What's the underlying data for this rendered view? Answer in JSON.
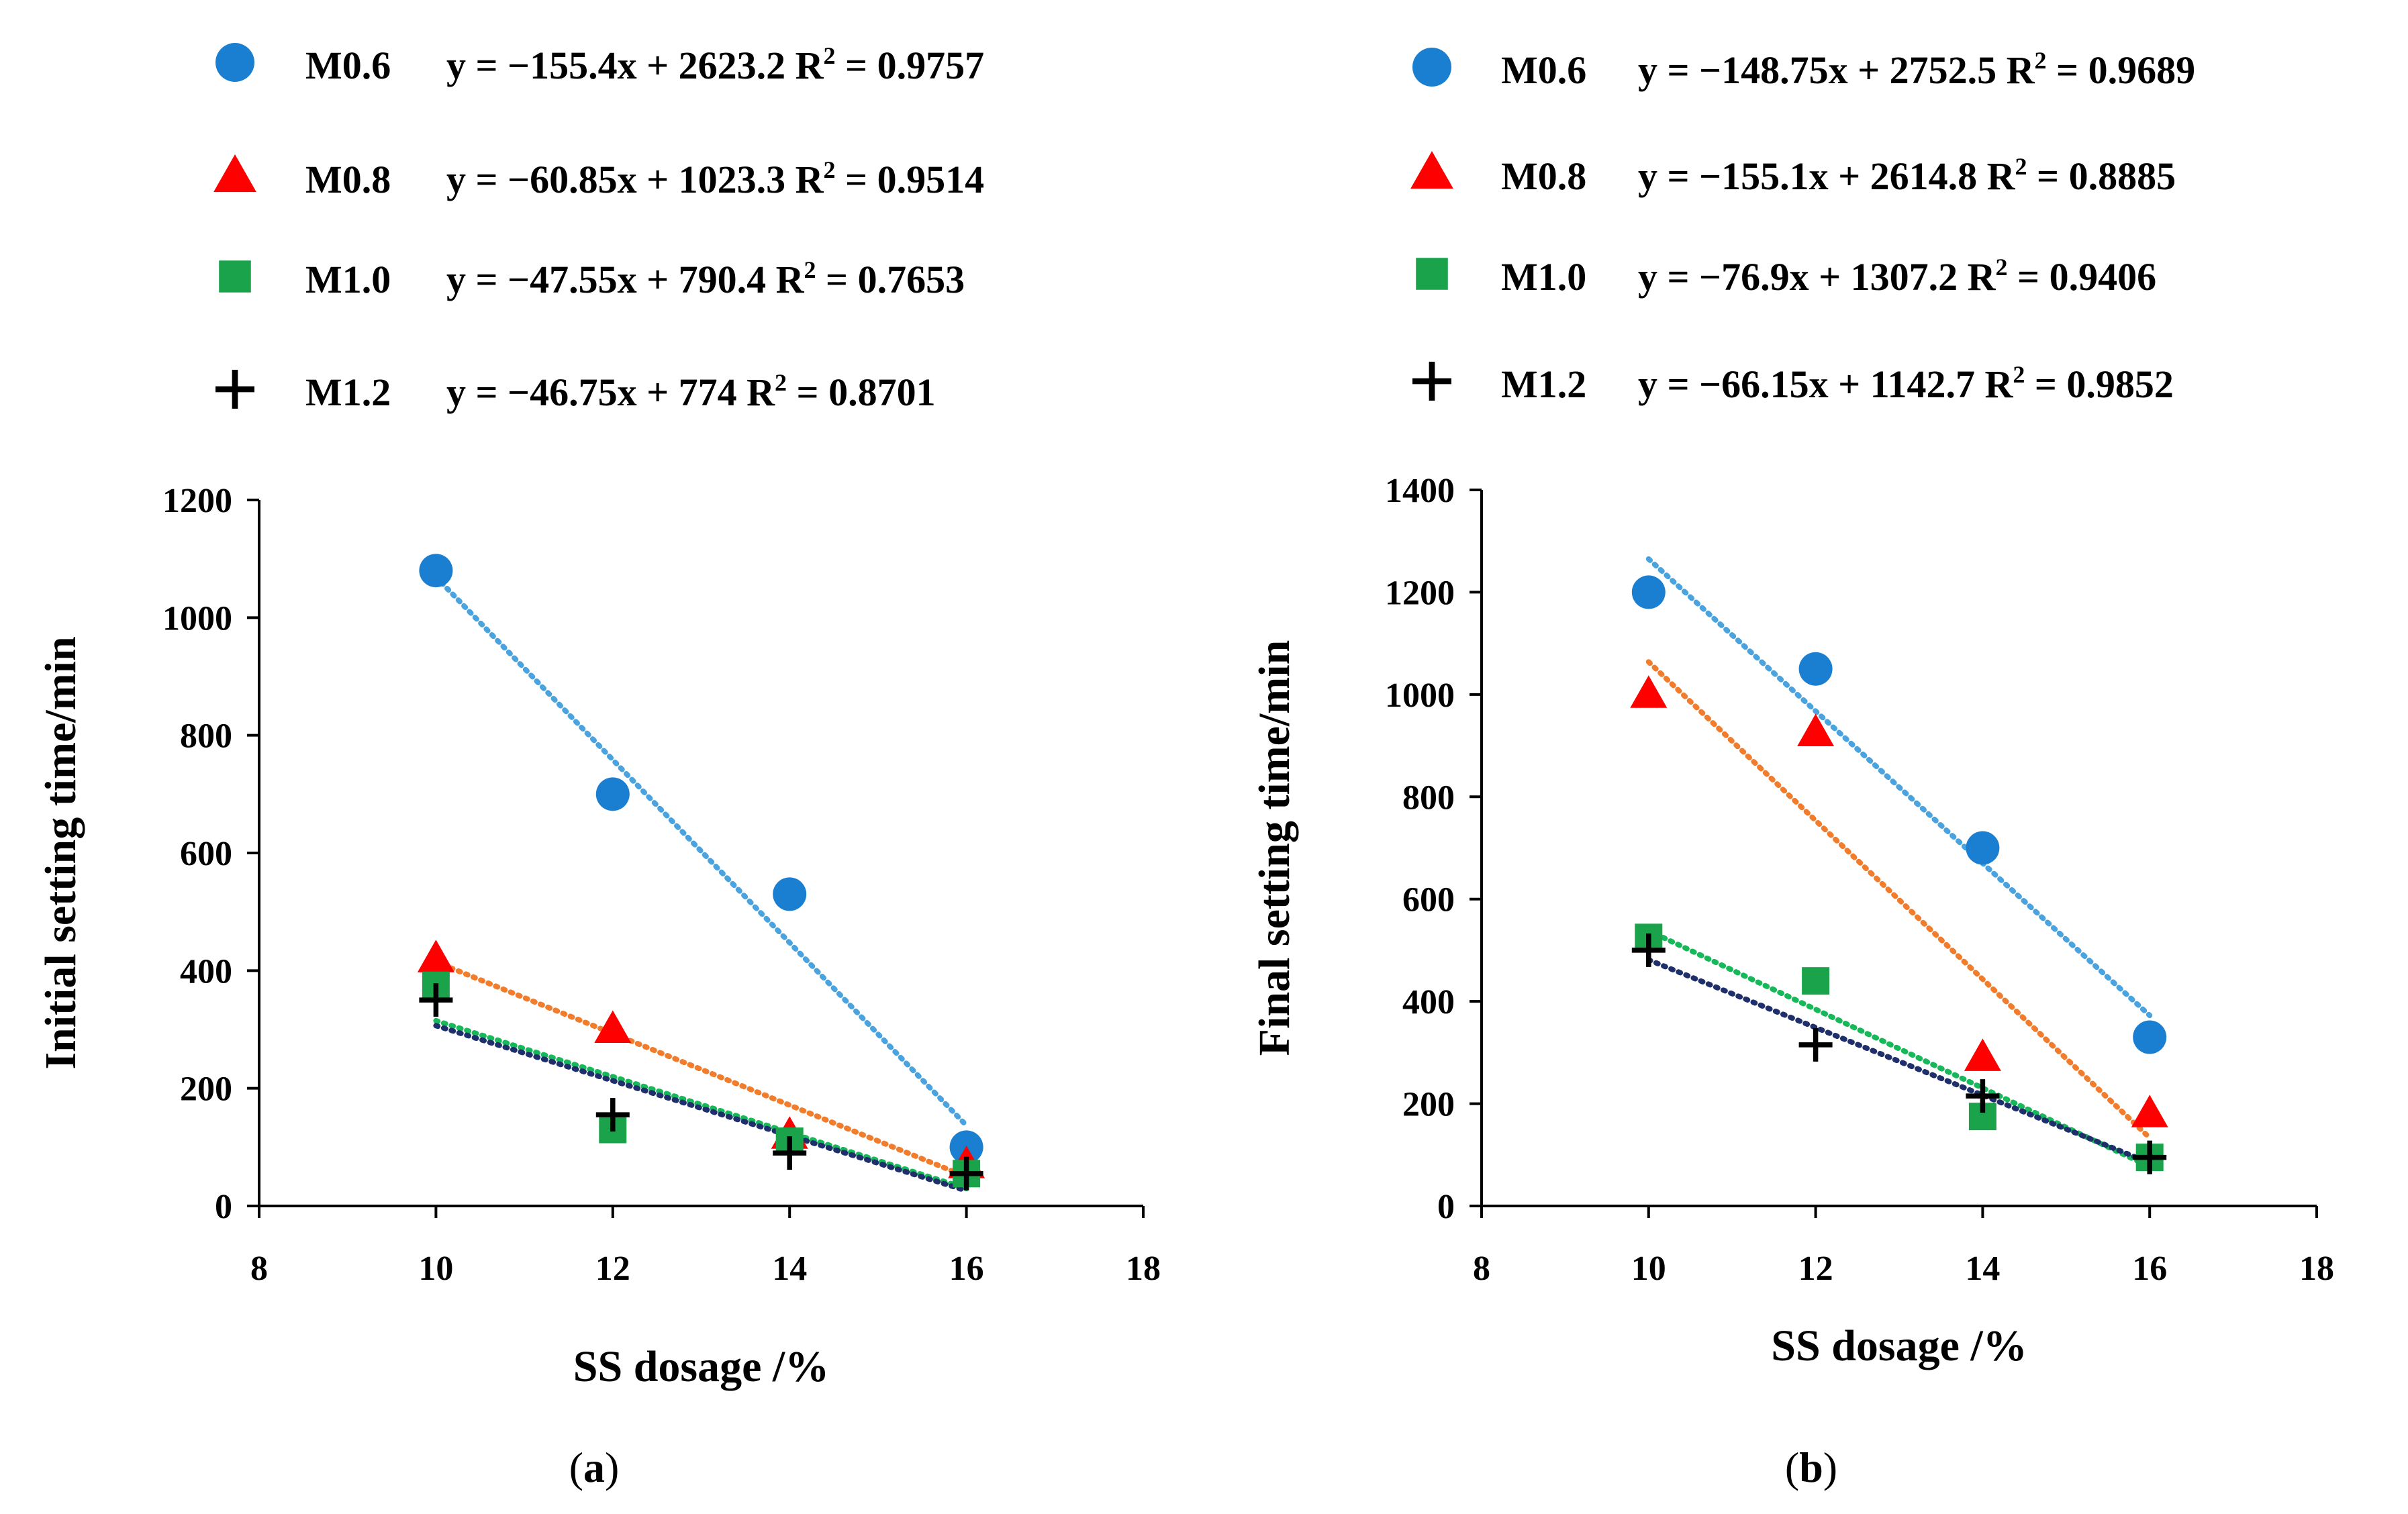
{
  "chart_data": [
    {
      "type": "scatter",
      "panel_label": "a",
      "xlabel": "SS dosage /%",
      "ylabel": "Initial setting time/min",
      "xlim": [
        8,
        18
      ],
      "ylim": [
        0,
        1200
      ],
      "xticks": [
        8,
        10,
        12,
        14,
        16,
        18
      ],
      "yticks": [
        0,
        200,
        400,
        600,
        800,
        1000,
        1200
      ],
      "grid": false,
      "legend_position": "top",
      "series": [
        {
          "name": "M0.6",
          "equation": "y = −155.4x + 2623.2",
          "r2_label": "R",
          "r2_sup": "2",
          "r2_value": " = 0.9757",
          "marker": "circle",
          "color": "#1b7fd1",
          "trend_color": "#4aa3df",
          "slope": -155.4,
          "intercept": 2623.2,
          "x": [
            10,
            12,
            14,
            16
          ],
          "y": [
            1080,
            700,
            530,
            100
          ]
        },
        {
          "name": "M0.8",
          "equation": "y = −60.85x + 1023.3",
          "r2_label": "R",
          "r2_sup": "2",
          "r2_value": " = 0.9514",
          "marker": "triangle",
          "color": "#ff0000",
          "trend_color": "#f07c2c",
          "slope": -60.85,
          "intercept": 1023.3,
          "x": [
            10,
            12,
            14,
            16
          ],
          "y": [
            420,
            300,
            120,
            70
          ]
        },
        {
          "name": "M1.0",
          "equation": "y = −47.55x + 790.4",
          "r2_label": "R",
          "r2_sup": "2",
          "r2_value": " = 0.7653",
          "marker": "square",
          "color": "#1aa34a",
          "trend_color": "#16b85a",
          "slope": -47.55,
          "intercept": 790.4,
          "x": [
            10,
            12,
            14,
            16
          ],
          "y": [
            375,
            130,
            110,
            55
          ]
        },
        {
          "name": "M1.2",
          "equation": "y = −46.75x + 774",
          "r2_label": "R",
          "r2_sup": "2",
          "r2_value": " = 0.8701",
          "marker": "plus",
          "color": "#000000",
          "trend_color": "#1f2f6b",
          "slope": -46.75,
          "intercept": 774,
          "x": [
            10,
            12,
            14,
            16
          ],
          "y": [
            350,
            155,
            90,
            55
          ]
        }
      ]
    },
    {
      "type": "scatter",
      "panel_label": "b",
      "xlabel": "SS dosage /%",
      "ylabel": "Final setting time/min",
      "xlim": [
        8,
        18
      ],
      "ylim": [
        0,
        1400
      ],
      "xticks": [
        8,
        10,
        12,
        14,
        16,
        18
      ],
      "yticks": [
        0,
        200,
        400,
        600,
        800,
        1000,
        1200,
        1400
      ],
      "grid": false,
      "legend_position": "top",
      "series": [
        {
          "name": "M0.6",
          "equation": "y = −148.75x + 2752.5",
          "r2_label": "R",
          "r2_sup": "2",
          "r2_value": " = 0.9689",
          "marker": "circle",
          "color": "#1b7fd1",
          "trend_color": "#4aa3df",
          "slope": -148.75,
          "intercept": 2752.5,
          "x": [
            10,
            12,
            14,
            16
          ],
          "y": [
            1200,
            1050,
            700,
            330
          ]
        },
        {
          "name": "M0.8",
          "equation": "y = −155.1x + 2614.8",
          "r2_label": "R",
          "r2_sup": "2",
          "r2_value": " = 0.8885",
          "marker": "triangle",
          "color": "#ff0000",
          "trend_color": "#f07c2c",
          "slope": -155.1,
          "intercept": 2614.8,
          "x": [
            10,
            12,
            14,
            16
          ],
          "y": [
            1000,
            925,
            290,
            180
          ]
        },
        {
          "name": "M1.0",
          "equation": "y = −76.9x + 1307.2",
          "r2_label": "R",
          "r2_sup": "2",
          "r2_value": " = 0.9406",
          "marker": "square",
          "color": "#1aa34a",
          "trend_color": "#16b85a",
          "slope": -76.9,
          "intercept": 1307.2,
          "x": [
            10,
            12,
            14,
            16
          ],
          "y": [
            525,
            440,
            175,
            95
          ]
        },
        {
          "name": "M1.2",
          "equation": "y = −66.15x + 1142.7",
          "r2_label": "R",
          "r2_sup": "2",
          "r2_value": " = 0.9852",
          "marker": "plus",
          "color": "#000000",
          "trend_color": "#1f2f6b",
          "slope": -66.15,
          "intercept": 1142.7,
          "x": [
            10,
            12,
            14,
            16
          ],
          "y": [
            500,
            315,
            215,
            95
          ]
        }
      ]
    }
  ]
}
